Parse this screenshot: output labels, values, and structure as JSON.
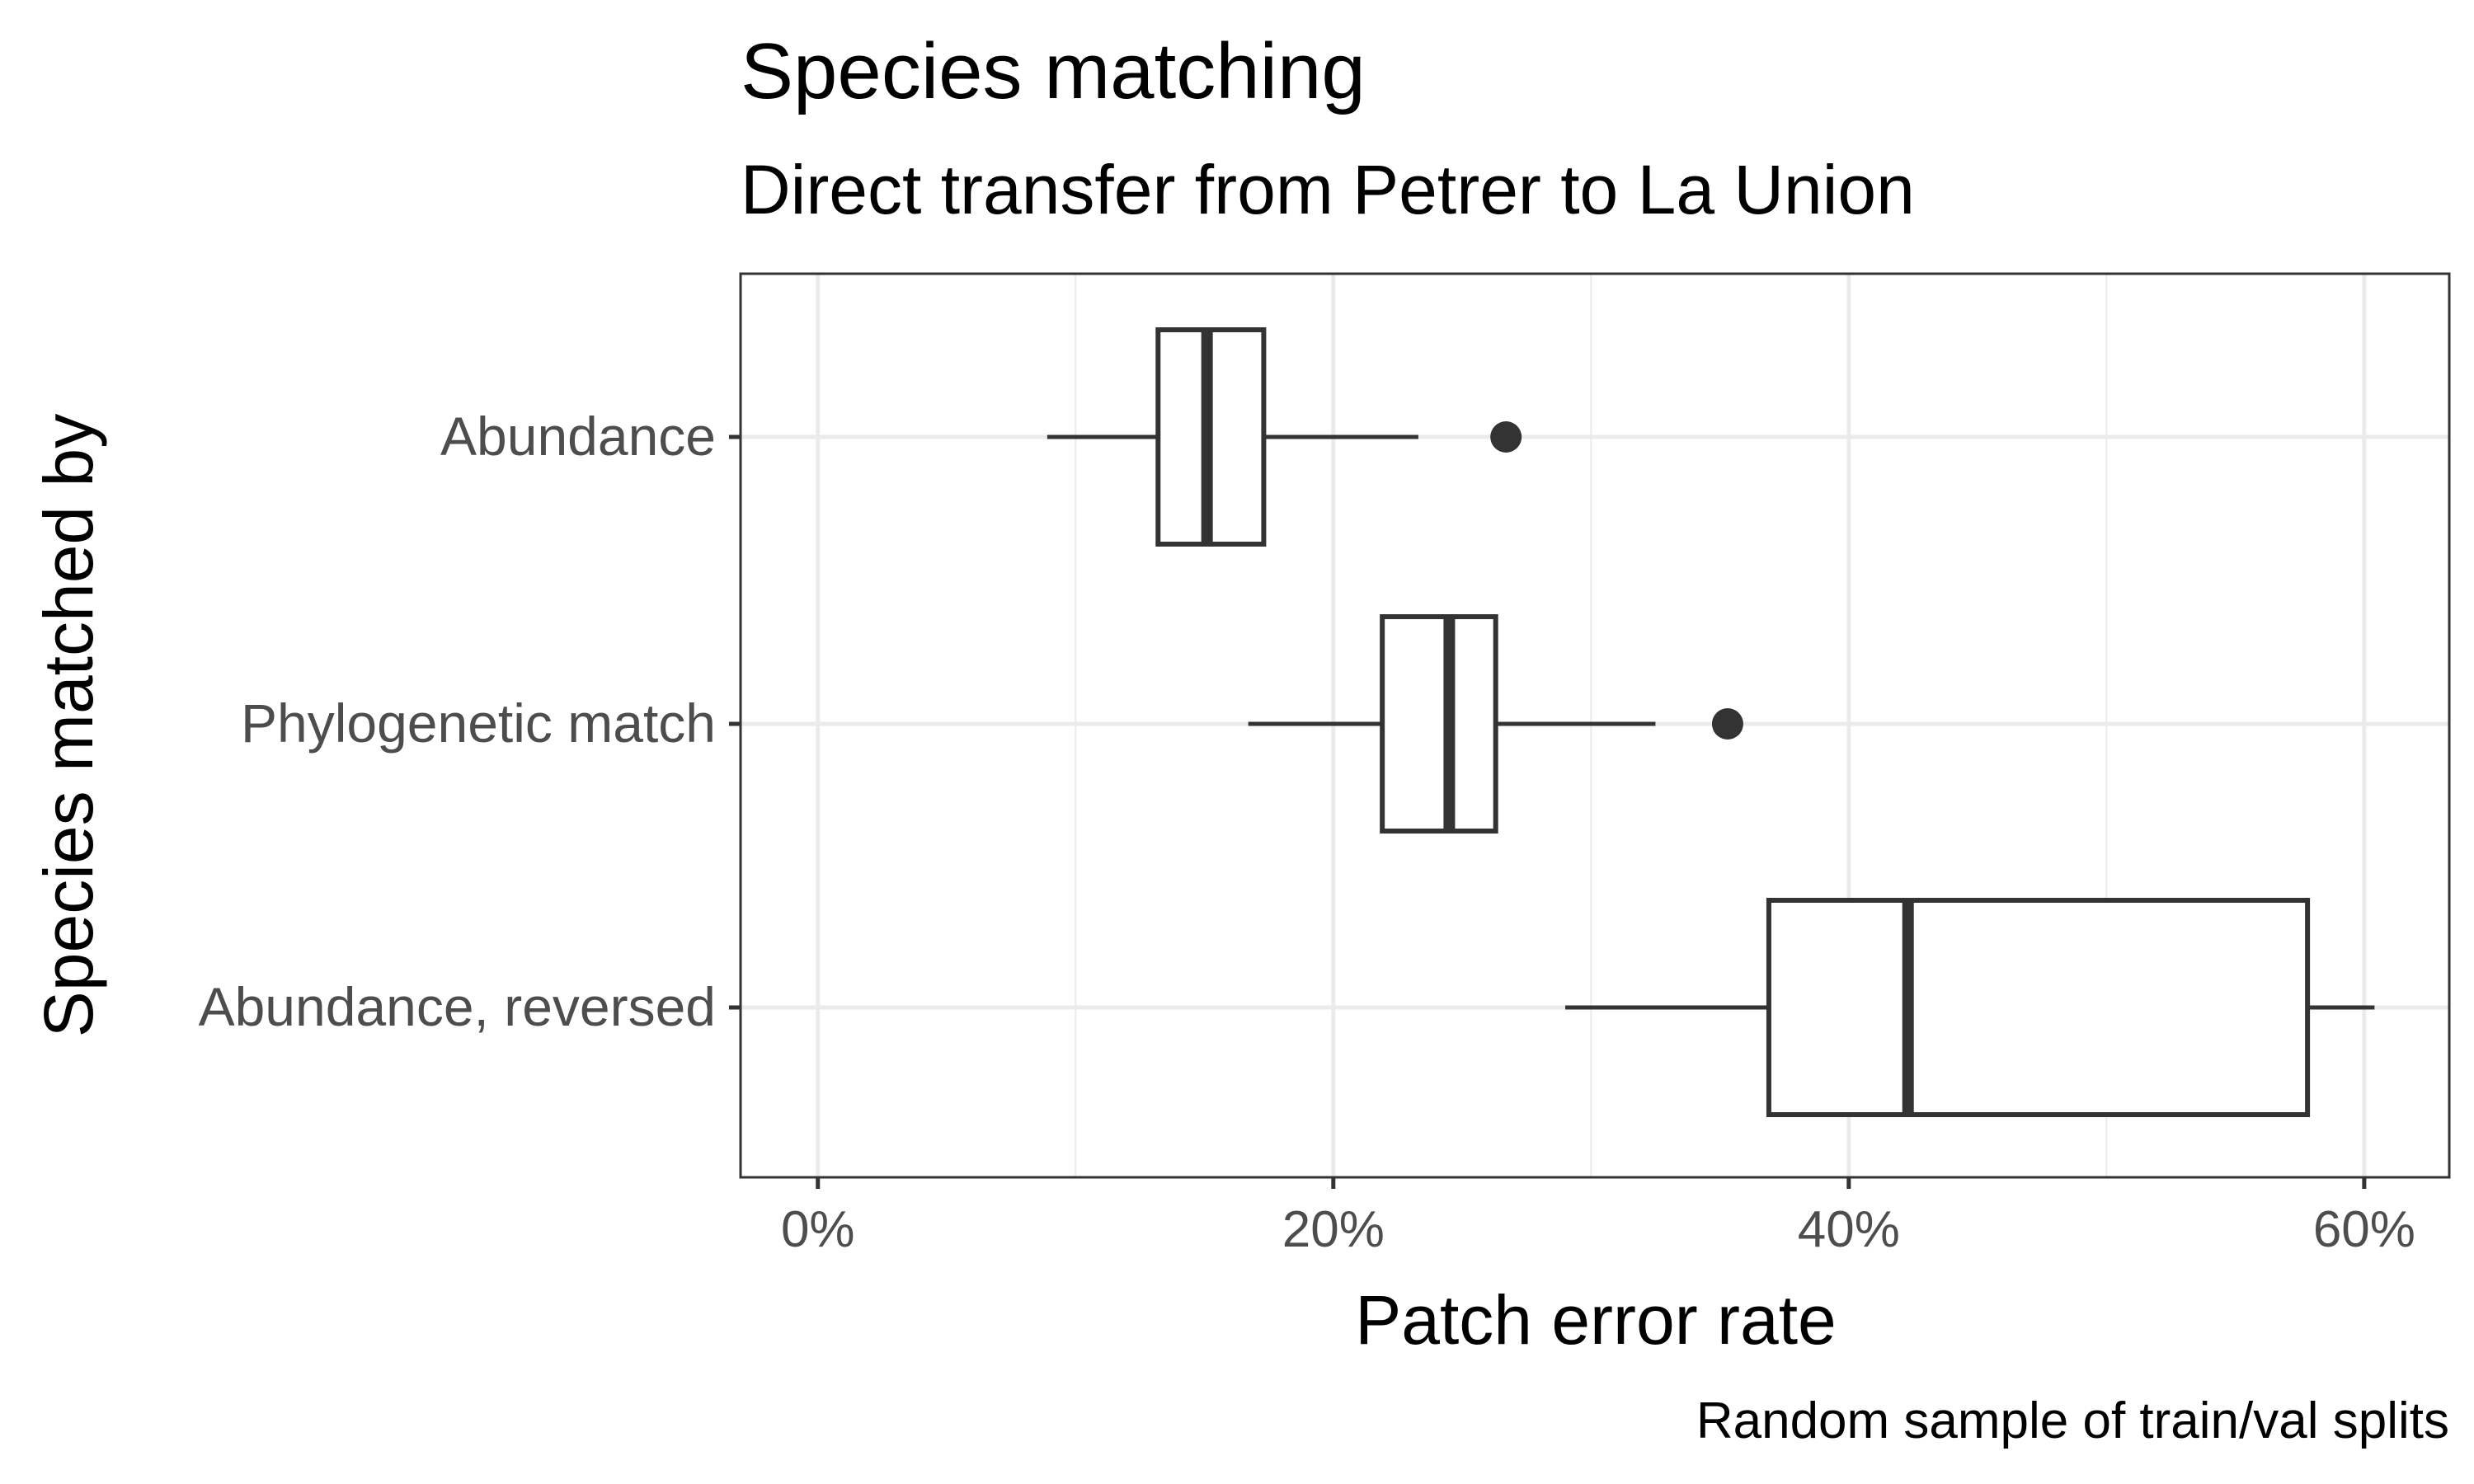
{
  "chart_data": {
    "type": "boxplot",
    "orientation": "horizontal",
    "title": "Species matching",
    "subtitle": "Direct transfer from Petrer to La Union",
    "xlabel": "Patch error rate",
    "ylabel": "Species matched by",
    "caption": "Random sample of train/val splits",
    "xlim": [
      -3.0,
      63.3
    ],
    "xticks": [
      0,
      20,
      40,
      60
    ],
    "xtick_labels": [
      "0%",
      "20%",
      "40%",
      "60%"
    ],
    "grid": true,
    "categories": [
      "Abundance",
      "Phylogenetic match",
      "Abundance, reversed"
    ],
    "boxes": [
      {
        "category": "Abundance",
        "whisker_low": 8.9,
        "q1": 13.2,
        "median": 15.1,
        "q3": 17.3,
        "whisker_high": 23.3,
        "outliers": [
          26.7
        ]
      },
      {
        "category": "Phylogenetic match",
        "whisker_low": 16.7,
        "q1": 21.9,
        "median": 24.5,
        "q3": 26.3,
        "whisker_high": 32.5,
        "outliers": [
          35.3
        ]
      },
      {
        "category": "Abundance, reversed",
        "whisker_low": 29.0,
        "q1": 36.9,
        "median": 42.3,
        "q3": 57.8,
        "whisker_high": 60.4,
        "outliers": []
      }
    ]
  }
}
